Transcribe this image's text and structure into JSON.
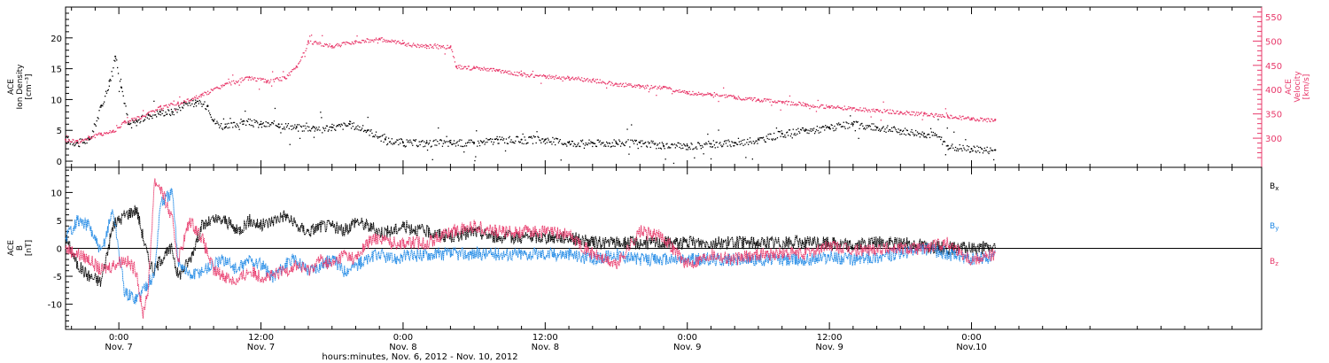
{
  "colors": {
    "density": "#000000",
    "velocity": "#e8386a",
    "bx": "#000000",
    "by": "#1e88e5",
    "bz": "#e8386a"
  },
  "footer": {
    "xlabel": "hours:minutes, Nov.  6, 2012 - Nov. 10, 2012"
  },
  "chart_data": [
    {
      "type": "scatter",
      "panel": "top",
      "ylabel": [
        "ACE",
        "Ion Density",
        "[cm⁻³]"
      ],
      "y2label": [
        "ACE",
        "Velocity",
        "[km/s]"
      ],
      "ylim": [
        -1,
        25
      ],
      "ytick_labels": [
        "0",
        "5",
        "10",
        "15",
        "20"
      ],
      "y2lim": [
        240,
        570
      ],
      "y2tick_labels": [
        "300",
        "350",
        "400",
        "450",
        "500",
        "550"
      ],
      "xlim": [
        -4.5,
        96.5
      ],
      "x_unit": "hours since Nov. 7 00:00",
      "x_tick_labels": [
        {
          "time": "0:00",
          "date": "Nov. 7"
        },
        {
          "time": "12:00",
          "date": "Nov. 7"
        },
        {
          "time": "0:00",
          "date": "Nov. 8"
        },
        {
          "time": "12:00",
          "date": "Nov. 8"
        },
        {
          "time": "0:00",
          "date": "Nov. 9"
        },
        {
          "time": "12:00",
          "date": "Nov. 9"
        },
        {
          "time": "0:00",
          "date": "Nov.10"
        }
      ],
      "series": [
        {
          "axis": "left",
          "color": "#000000",
          "points": [
            [
              -4.5,
              3.5
            ],
            [
              -3.5,
              3
            ],
            [
              -2.5,
              3.5
            ],
            [
              -1.5,
              9
            ],
            [
              -0.8,
              13
            ],
            [
              -0.3,
              17
            ],
            [
              0.2,
              12
            ],
            [
              0.8,
              6
            ],
            [
              1.5,
              6.5
            ],
            [
              2.5,
              7.5
            ],
            [
              3.5,
              8
            ],
            [
              4.5,
              8
            ],
            [
              5.5,
              9.5
            ],
            [
              6.5,
              9.5
            ],
            [
              7.5,
              9
            ],
            [
              8,
              6.5
            ],
            [
              9,
              5.5
            ],
            [
              10.5,
              6.5
            ],
            [
              12,
              6
            ],
            [
              13.5,
              6
            ],
            [
              15,
              5.5
            ],
            [
              16.5,
              5.5
            ],
            [
              18,
              5.5
            ],
            [
              19.5,
              6
            ],
            [
              21,
              5
            ],
            [
              22.5,
              3.5
            ],
            [
              24,
              3
            ],
            [
              26,
              3
            ],
            [
              28,
              3
            ],
            [
              30,
              3
            ],
            [
              32,
              3.5
            ],
            [
              34,
              3.5
            ],
            [
              36,
              3.5
            ],
            [
              38,
              3
            ],
            [
              40,
              3
            ],
            [
              42,
              3
            ],
            [
              44,
              3
            ],
            [
              46,
              2.5
            ],
            [
              48,
              2.5
            ],
            [
              50,
              2.8
            ],
            [
              52,
              3
            ],
            [
              54,
              3.5
            ],
            [
              56,
              4.5
            ],
            [
              58,
              5
            ],
            [
              60,
              5.5
            ],
            [
              62,
              6
            ],
            [
              64,
              5.5
            ],
            [
              66,
              5
            ],
            [
              68,
              4.5
            ],
            [
              69,
              4.2
            ],
            [
              70,
              2.5
            ],
            [
              72,
              2
            ],
            [
              74,
              1.8
            ]
          ]
        },
        {
          "axis": "right",
          "color": "#e8386a",
          "points": [
            [
              -4.5,
              297
            ],
            [
              -3.5,
              295
            ],
            [
              -2.5,
              302
            ],
            [
              -1.5,
              310
            ],
            [
              -0.5,
              315
            ],
            [
              0.5,
              335
            ],
            [
              2,
              345
            ],
            [
              3.5,
              365
            ],
            [
              5,
              372
            ],
            [
              7,
              390
            ],
            [
              9,
              412
            ],
            [
              11,
              425
            ],
            [
              12.5,
              418
            ],
            [
              14,
              425
            ],
            [
              15,
              448
            ],
            [
              16,
              500
            ],
            [
              18,
              490
            ],
            [
              20,
              500
            ],
            [
              22,
              505
            ],
            [
              24,
              495
            ],
            [
              26,
              490
            ],
            [
              28,
              488
            ],
            [
              28.5,
              448
            ],
            [
              30,
              445
            ],
            [
              32,
              440
            ],
            [
              34,
              432
            ],
            [
              36,
              428
            ],
            [
              38,
              425
            ],
            [
              40,
              420
            ],
            [
              42,
              412
            ],
            [
              44,
              408
            ],
            [
              46,
              405
            ],
            [
              48,
              395
            ],
            [
              50,
              390
            ],
            [
              52,
              385
            ],
            [
              54,
              380
            ],
            [
              56,
              375
            ],
            [
              58,
              370
            ],
            [
              60,
              365
            ],
            [
              62,
              362
            ],
            [
              64,
              358
            ],
            [
              66,
              354
            ],
            [
              68,
              350
            ],
            [
              70,
              345
            ],
            [
              72,
              341
            ],
            [
              74,
              337
            ]
          ]
        }
      ]
    },
    {
      "type": "line",
      "panel": "bottom",
      "ylabel": [
        "ACE",
        "B",
        "[nT]"
      ],
      "ylim": [
        -14.5,
        14.5
      ],
      "ytick_labels": [
        "-10",
        "-5",
        "0",
        "5",
        "10"
      ],
      "xlim": [
        -4.5,
        96.5
      ],
      "x_unit": "hours since Nov. 7 00:00",
      "legend": "right",
      "zero_line": true,
      "series": [
        {
          "name": "Bx",
          "color": "#000000",
          "points": [
            [
              -4.5,
              2
            ],
            [
              -3.5,
              -3
            ],
            [
              -2.5,
              -5
            ],
            [
              -1.5,
              -6
            ],
            [
              -0.5,
              4
            ],
            [
              0.5,
              6
            ],
            [
              1.5,
              7
            ],
            [
              2.5,
              -2
            ],
            [
              3,
              -4
            ],
            [
              3.5,
              -2
            ],
            [
              4.5,
              0
            ],
            [
              5,
              -5
            ],
            [
              6,
              -2
            ],
            [
              7,
              4
            ],
            [
              8,
              5
            ],
            [
              9,
              5
            ],
            [
              10,
              3
            ],
            [
              11,
              5
            ],
            [
              12,
              4
            ],
            [
              13,
              5
            ],
            [
              14,
              6
            ],
            [
              15,
              4
            ],
            [
              16,
              3
            ],
            [
              17,
              4
            ],
            [
              18,
              4
            ],
            [
              19,
              3
            ],
            [
              20,
              5
            ],
            [
              21,
              4
            ],
            [
              22,
              3
            ],
            [
              23,
              3
            ],
            [
              24,
              4
            ],
            [
              26,
              3
            ],
            [
              28,
              2
            ],
            [
              30,
              3
            ],
            [
              32,
              2
            ],
            [
              34,
              2
            ],
            [
              36,
              2
            ],
            [
              38,
              2
            ],
            [
              40,
              1
            ],
            [
              42,
              1
            ],
            [
              44,
              1
            ],
            [
              46,
              1
            ],
            [
              48,
              1
            ],
            [
              50,
              1
            ],
            [
              52,
              1
            ],
            [
              54,
              1
            ],
            [
              56,
              1
            ],
            [
              58,
              1
            ],
            [
              60,
              1
            ],
            [
              62,
              0.5
            ],
            [
              64,
              1
            ],
            [
              66,
              1
            ],
            [
              68,
              0.5
            ],
            [
              70,
              0
            ],
            [
              72,
              0
            ],
            [
              74,
              0.2
            ]
          ]
        },
        {
          "name": "By",
          "color": "#1e88e5",
          "points": [
            [
              -4.5,
              2
            ],
            [
              -3.5,
              5
            ],
            [
              -2.5,
              4
            ],
            [
              -1.5,
              -1
            ],
            [
              -0.5,
              7
            ],
            [
              0.5,
              -8
            ],
            [
              1.5,
              -9
            ],
            [
              2.5,
              -6
            ],
            [
              3,
              -5
            ],
            [
              3.5,
              8
            ],
            [
              4.5,
              10
            ],
            [
              5,
              -2
            ],
            [
              6,
              -5
            ],
            [
              7,
              -4
            ],
            [
              8,
              -3
            ],
            [
              9,
              -2
            ],
            [
              10,
              -4
            ],
            [
              11,
              -2
            ],
            [
              12,
              -3
            ],
            [
              13,
              -5
            ],
            [
              14,
              -3
            ],
            [
              15,
              -2
            ],
            [
              16,
              -4
            ],
            [
              17,
              -3
            ],
            [
              18,
              -2
            ],
            [
              19,
              -4
            ],
            [
              20,
              -3
            ],
            [
              21,
              -2
            ],
            [
              22,
              -1
            ],
            [
              23,
              -2
            ],
            [
              24,
              -1.5
            ],
            [
              26,
              -1
            ],
            [
              28,
              -1
            ],
            [
              30,
              -1
            ],
            [
              32,
              -1
            ],
            [
              34,
              -1
            ],
            [
              36,
              -1
            ],
            [
              38,
              -1
            ],
            [
              40,
              -2
            ],
            [
              42,
              -1
            ],
            [
              44,
              -2
            ],
            [
              46,
              -2
            ],
            [
              48,
              -2
            ],
            [
              50,
              -2
            ],
            [
              52,
              -2
            ],
            [
              54,
              -2
            ],
            [
              56,
              -2
            ],
            [
              58,
              -2
            ],
            [
              60,
              -1.5
            ],
            [
              62,
              -2
            ],
            [
              64,
              -1.5
            ],
            [
              66,
              -1
            ],
            [
              68,
              0
            ],
            [
              70,
              -1
            ],
            [
              72,
              -2
            ],
            [
              74,
              -1.5
            ]
          ]
        },
        {
          "name": "Bz",
          "color": "#e8386a",
          "points": [
            [
              -4.5,
              0
            ],
            [
              -3.5,
              -1
            ],
            [
              -2.5,
              -2
            ],
            [
              -1.5,
              -4
            ],
            [
              -0.5,
              -3
            ],
            [
              0.5,
              -2
            ],
            [
              1.5,
              -4
            ],
            [
              2,
              -12
            ],
            [
              2.5,
              -7
            ],
            [
              3,
              12
            ],
            [
              3.5,
              11
            ],
            [
              4.5,
              5
            ],
            [
              5,
              -2
            ],
            [
              6,
              5
            ],
            [
              7,
              2
            ],
            [
              8,
              -4
            ],
            [
              9,
              -5
            ],
            [
              10,
              -6
            ],
            [
              11,
              -4
            ],
            [
              12,
              -5
            ],
            [
              13,
              -5
            ],
            [
              14,
              -4
            ],
            [
              15,
              -3
            ],
            [
              16,
              -4
            ],
            [
              17,
              -2
            ],
            [
              18,
              -3
            ],
            [
              19,
              -1
            ],
            [
              20,
              -2
            ],
            [
              21,
              1
            ],
            [
              22,
              2
            ],
            [
              23,
              1
            ],
            [
              24,
              1
            ],
            [
              26,
              1
            ],
            [
              28,
              3
            ],
            [
              30,
              4
            ],
            [
              32,
              3
            ],
            [
              34,
              3
            ],
            [
              36,
              3
            ],
            [
              38,
              2.5
            ],
            [
              40,
              -1
            ],
            [
              42,
              -3
            ],
            [
              44,
              3
            ],
            [
              46,
              2
            ],
            [
              48,
              -3
            ],
            [
              50,
              -1
            ],
            [
              52,
              -2
            ],
            [
              54,
              -1
            ],
            [
              56,
              -1
            ],
            [
              58,
              -1
            ],
            [
              60,
              0.5
            ],
            [
              62,
              -0.5
            ],
            [
              64,
              0
            ],
            [
              66,
              0
            ],
            [
              68,
              0
            ],
            [
              70,
              1
            ],
            [
              72,
              -2
            ],
            [
              74,
              -1
            ]
          ]
        }
      ]
    }
  ]
}
